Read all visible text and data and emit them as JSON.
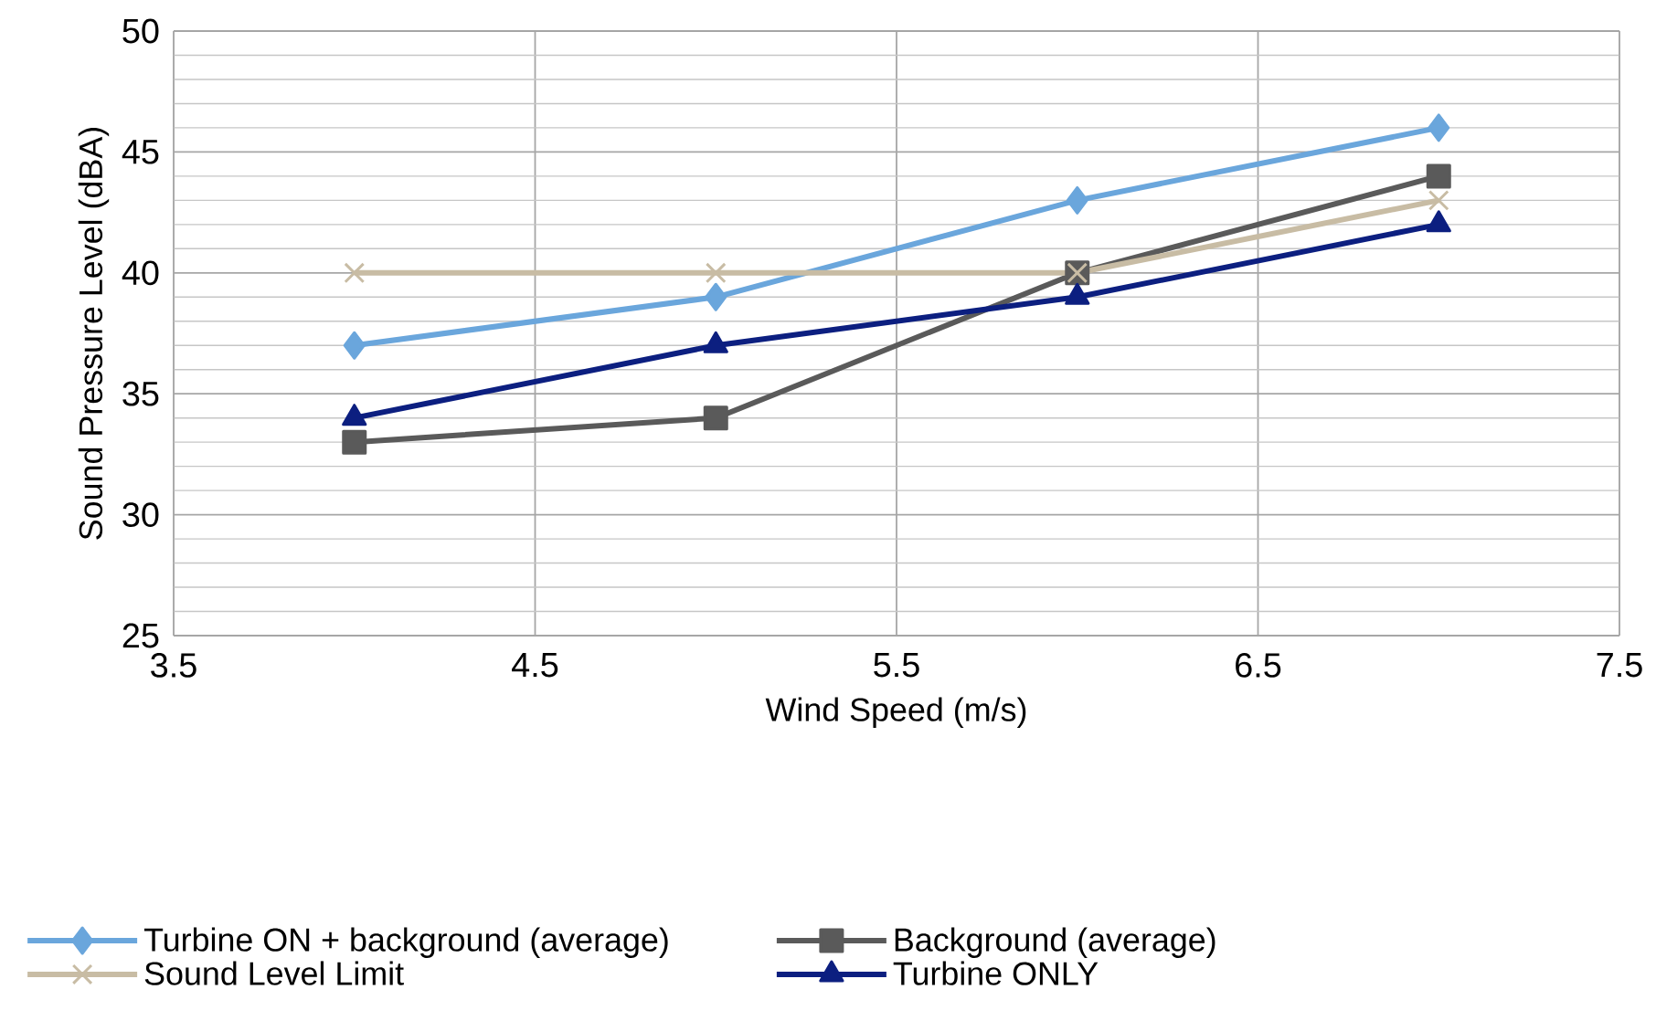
{
  "chart_data": {
    "type": "line",
    "xlabel": "Wind Speed (m/s)",
    "ylabel": "Sound Pressure Level (dBA)",
    "xlim": [
      3.5,
      7.5
    ],
    "xticks": [
      3.5,
      4.5,
      5.5,
      6.5,
      7.5
    ],
    "ylim": [
      25,
      50
    ],
    "yticks": [
      25,
      30,
      35,
      40,
      45,
      50
    ],
    "grid": true,
    "legend": "bottom",
    "series": [
      {
        "name": "Turbine ON + background (average)",
        "color": "#6aa6dc",
        "marker": "diamond",
        "x": [
          4,
          5,
          6,
          7
        ],
        "values": [
          37,
          39,
          43,
          46
        ]
      },
      {
        "name": "Background (average)",
        "color": "#5a5a5a",
        "marker": "square",
        "x": [
          4,
          5,
          6,
          7
        ],
        "values": [
          33,
          34,
          40,
          44
        ]
      },
      {
        "name": "Sound Level Limit",
        "color": "#c8bca4",
        "marker": "cross",
        "x": [
          4,
          5,
          6,
          7
        ],
        "values": [
          40,
          40,
          40,
          43
        ]
      },
      {
        "name": "Turbine ONLY",
        "color": "#0c1f80",
        "marker": "triangle",
        "x": [
          4,
          5,
          6,
          7
        ],
        "values": [
          34,
          37,
          39,
          42
        ]
      }
    ]
  }
}
